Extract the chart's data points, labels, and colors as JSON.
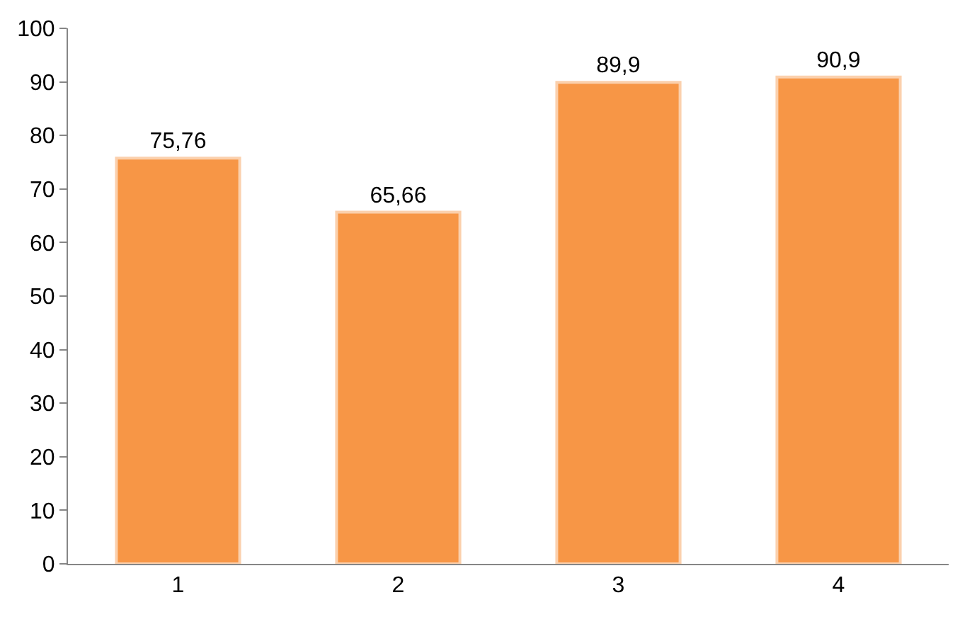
{
  "chart_data": {
    "type": "bar",
    "categories": [
      "1",
      "2",
      "3",
      "4"
    ],
    "values": [
      75.76,
      65.66,
      89.9,
      90.9
    ],
    "value_labels": [
      "75,76",
      "65,66",
      "89,9",
      "90,9"
    ],
    "color": "#f79646",
    "ylim": [
      0,
      100
    ],
    "yticks": [
      0,
      10,
      20,
      30,
      40,
      50,
      60,
      70,
      80,
      90,
      100
    ]
  }
}
